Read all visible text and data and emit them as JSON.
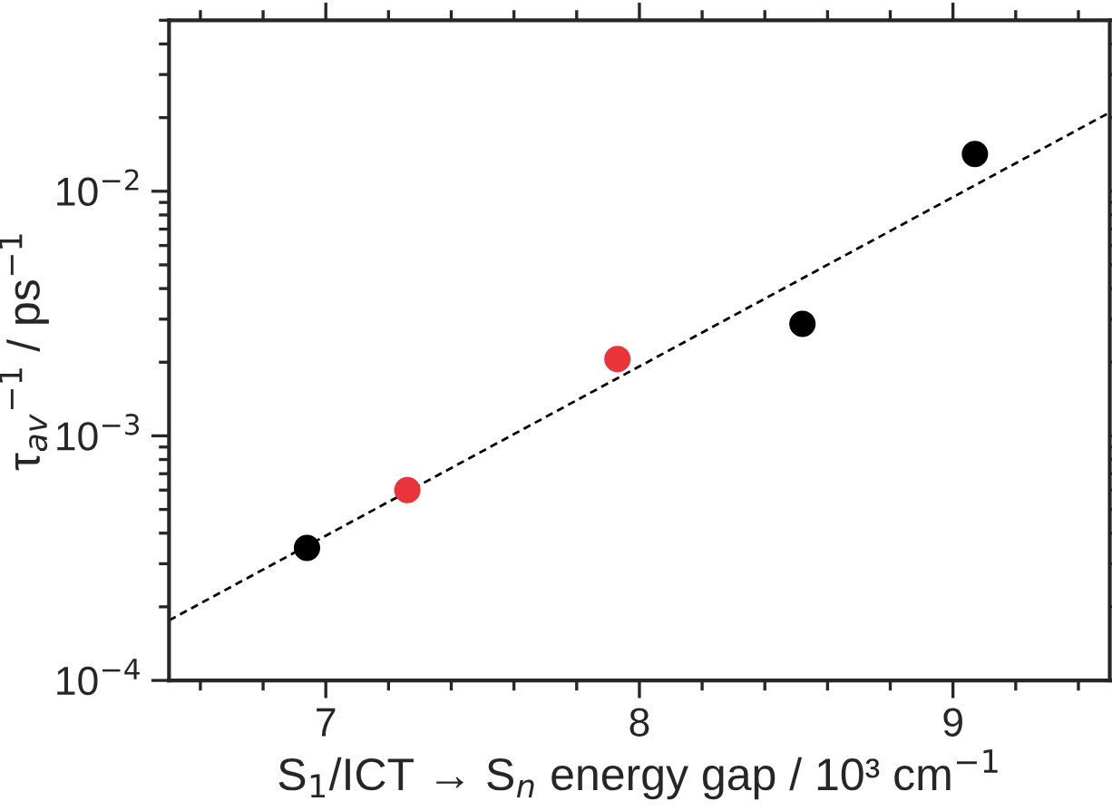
{
  "chart_data": {
    "type": "scatter",
    "xlabel": "S$_{1}$/ICT → S$_{n}$ energy gap / 10³ cm$^{−1}$",
    "ylabel": "τ$_{av}$$^{−1}$ / ps$^{−1}$",
    "series": [
      {
        "type": "line",
        "color": "#000000",
        "line_style": "dashed",
        "marker": "none",
        "x": [
          6.5,
          9.5
        ],
        "values": [
          0.000176,
          0.021
        ]
      },
      {
        "color": "#000000",
        "marker": "circle",
        "x": [
          6.94,
          8.52,
          9.07
        ],
        "values": [
          0.000348,
          0.00287,
          0.0142
        ]
      },
      {
        "color": "#e8343a",
        "marker": "circle",
        "x": [
          7.26,
          7.93
        ],
        "values": [
          0.0006,
          0.00206
        ]
      }
    ],
    "log": "y",
    "xlim": [
      6.5,
      9.5
    ],
    "xticks": [
      7,
      8,
      9
    ],
    "ylim": [
      0.0001,
      0.05
    ],
    "yticks": [
      {
        "value": 0.0001,
        "label": "10$^{−4}$"
      },
      {
        "value": 0.001,
        "label": "10$^{−3}$"
      },
      {
        "value": 0.01,
        "label": "10$^{−2}$"
      }
    ],
    "grid": false,
    "legend": false
  }
}
